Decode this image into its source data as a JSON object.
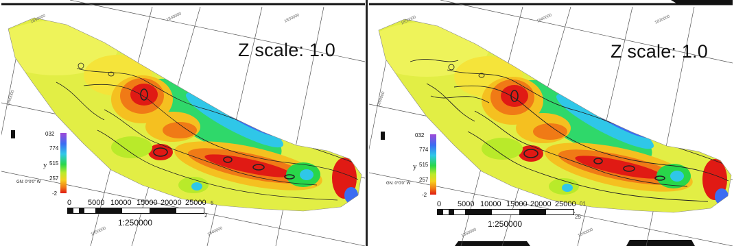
{
  "panels": [
    {
      "zscale": "Z scale: 1.0",
      "legend": {
        "labels": [
          "1032",
          "774",
          "515",
          "257",
          "-2"
        ],
        "top": "032",
        "axis_glyph": "y"
      },
      "north_label": "GN: 0°0'0\" W",
      "scale_ticks": [
        "0",
        "5000",
        "10000",
        "15000",
        "20000",
        "25000"
      ],
      "scale_ratio": "1:250000",
      "grid_labels": [
        "1850000",
        "1840000",
        "1830000",
        "1860000",
        "1860000",
        "1850000",
        "1840000"
      ],
      "edge_labels": [
        "5",
        "2"
      ]
    },
    {
      "zscale": "Z scale: 1.0",
      "legend": {
        "labels": [
          "1032",
          "774",
          "515",
          "257",
          "-2"
        ],
        "top": "032",
        "axis_glyph": "y"
      },
      "north_label": "GN: 0°0'0\" W",
      "scale_ticks": [
        "0",
        "5000",
        "10000",
        "15000",
        "20000",
        "25000"
      ],
      "scale_ratio": "1:250000",
      "grid_labels": [
        "1850000",
        "1840000",
        "1830000",
        "1860000",
        "1860000",
        "1850000",
        "1840000"
      ],
      "edge_labels": [
        "01",
        "25"
      ]
    }
  ],
  "colors": {
    "high": "#e01a14",
    "orange": "#f07a16",
    "yellow": "#f5e43a",
    "lime": "#b9ea2a",
    "green": "#29d64a",
    "cyan": "#2fc7e8",
    "blue": "#3b6cf2",
    "purple": "#8a3fd8"
  }
}
